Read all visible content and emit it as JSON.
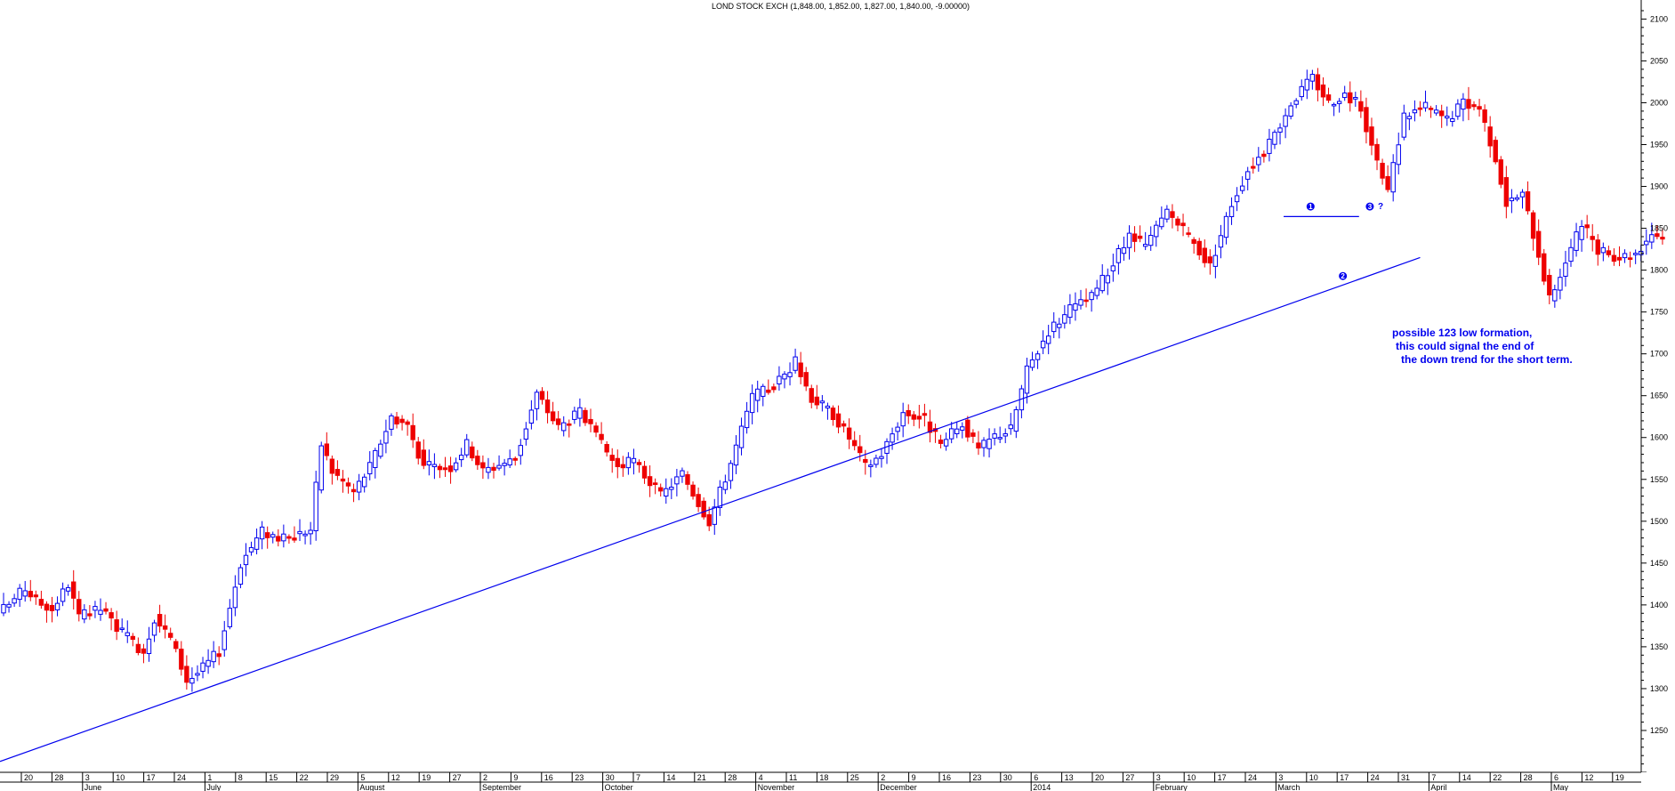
{
  "chart_data": {
    "type": "candlestick",
    "title": "LOND STOCK EXCH (1,848.00, 1,852.00, 1,827.00, 1,840.00, -9.00000)",
    "y_axis": {
      "ylim": [
        1200,
        2110
      ],
      "ticks": [
        1250,
        1300,
        1350,
        1400,
        1450,
        1500,
        1550,
        1600,
        1650,
        1700,
        1750,
        1800,
        1850,
        1900,
        1950,
        2000,
        2050,
        2100
      ],
      "side": "right"
    },
    "x_axis": {
      "day_ticks": [
        "20",
        "28",
        "3",
        "10",
        "17",
        "24",
        "1",
        "8",
        "15",
        "22",
        "29",
        "5",
        "12",
        "19",
        "27",
        "2",
        "9",
        "16",
        "23",
        "30",
        "7",
        "14",
        "21",
        "28",
        "4",
        "11",
        "18",
        "25",
        "2",
        "9",
        "16",
        "23",
        "30",
        "6",
        "13",
        "20",
        "27",
        "3",
        "10",
        "17",
        "24",
        "3",
        "10",
        "17",
        "24",
        "31",
        "7",
        "14",
        "22",
        "28",
        "6",
        "12",
        "19"
      ],
      "month_labels": [
        "June",
        "July",
        "August",
        "September",
        "October",
        "November",
        "December",
        "2014",
        "February",
        "March",
        "April",
        "May"
      ]
    },
    "trendline": {
      "from": {
        "index": 0,
        "value": 1213
      },
      "to": {
        "index": 263,
        "value": 1815
      }
    },
    "resistance": {
      "from": {
        "index": 237,
        "value": 1864
      },
      "to": {
        "index": 251,
        "value": 1864
      }
    },
    "markers": [
      {
        "label": "1",
        "index": 242,
        "value": 1876
      },
      {
        "label": "2",
        "index": 248,
        "value": 1793
      },
      {
        "label": "3",
        "index": 253,
        "value": 1876
      },
      {
        "label": "?",
        "index": 255,
        "value": 1876
      }
    ],
    "annotation": [
      "possible 123 low formation,",
      "this could signal the end of",
      "the down trend for the short term."
    ],
    "series": [
      {
        "anchors": [
          [
            0,
            1395
          ],
          [
            4,
            1420
          ],
          [
            6,
            1405
          ],
          [
            9,
            1395
          ],
          [
            12,
            1425
          ],
          [
            14,
            1385
          ],
          [
            18,
            1395
          ],
          [
            23,
            1360
          ],
          [
            26,
            1345
          ],
          [
            28,
            1385
          ],
          [
            31,
            1360
          ],
          [
            34,
            1310
          ],
          [
            36,
            1318
          ],
          [
            40,
            1345
          ],
          [
            44,
            1450
          ],
          [
            48,
            1488
          ],
          [
            52,
            1478
          ],
          [
            57,
            1490
          ],
          [
            59,
            1592
          ],
          [
            61,
            1560
          ],
          [
            65,
            1535
          ],
          [
            68,
            1565
          ],
          [
            72,
            1625
          ],
          [
            75,
            1615
          ],
          [
            78,
            1565
          ],
          [
            83,
            1565
          ],
          [
            86,
            1592
          ],
          [
            89,
            1560
          ],
          [
            95,
            1575
          ],
          [
            99,
            1652
          ],
          [
            103,
            1612
          ],
          [
            107,
            1630
          ],
          [
            110,
            1600
          ],
          [
            114,
            1565
          ],
          [
            117,
            1572
          ],
          [
            122,
            1530
          ],
          [
            126,
            1557
          ],
          [
            131,
            1500
          ],
          [
            135,
            1570
          ],
          [
            139,
            1648
          ],
          [
            143,
            1662
          ],
          [
            147,
            1690
          ],
          [
            150,
            1648
          ],
          [
            154,
            1628
          ],
          [
            157,
            1600
          ],
          [
            160,
            1565
          ],
          [
            163,
            1580
          ],
          [
            167,
            1630
          ],
          [
            171,
            1622
          ],
          [
            174,
            1590
          ],
          [
            178,
            1617
          ],
          [
            181,
            1585
          ],
          [
            184,
            1602
          ],
          [
            187,
            1610
          ],
          [
            190,
            1680
          ],
          [
            194,
            1728
          ],
          [
            198,
            1752
          ],
          [
            202,
            1768
          ],
          [
            206,
            1808
          ],
          [
            209,
            1840
          ],
          [
            212,
            1828
          ],
          [
            216,
            1870
          ],
          [
            220,
            1840
          ],
          [
            224,
            1805
          ],
          [
            228,
            1880
          ],
          [
            231,
            1920
          ],
          [
            235,
            1950
          ],
          [
            239,
            2000
          ],
          [
            243,
            2030
          ],
          [
            246,
            2000
          ],
          [
            249,
            2010
          ],
          [
            252,
            1995
          ],
          [
            255,
            1925
          ],
          [
            257,
            1895
          ],
          [
            260,
            1985
          ],
          [
            264,
            1995
          ],
          [
            268,
            1980
          ],
          [
            271,
            2000
          ],
          [
            274,
            1995
          ],
          [
            277,
            1935
          ],
          [
            279,
            1880
          ],
          [
            282,
            1890
          ],
          [
            285,
            1820
          ],
          [
            287,
            1765
          ],
          [
            290,
            1810
          ],
          [
            293,
            1855
          ],
          [
            296,
            1822
          ],
          [
            300,
            1816
          ],
          [
            303,
            1820
          ],
          [
            306,
            1845
          ],
          [
            308,
            1840
          ]
        ]
      }
    ]
  }
}
